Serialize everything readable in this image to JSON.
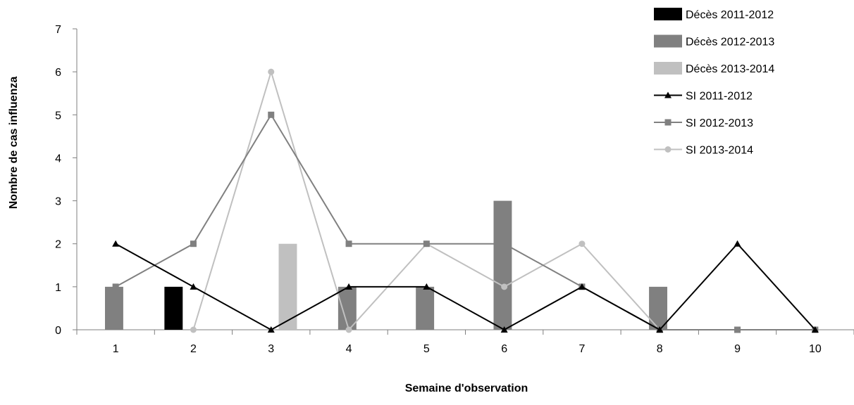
{
  "chart_data": {
    "type": "bar",
    "xlabel": "Semaine d'observation",
    "ylabel": "Nombre de cas influenza",
    "categories": [
      "1",
      "2",
      "3",
      "4",
      "5",
      "6",
      "7",
      "8",
      "9",
      "10"
    ],
    "ylim": [
      0,
      7
    ],
    "yticks": [
      "0",
      "1",
      "2",
      "3",
      "4",
      "5",
      "6",
      "7"
    ],
    "grid": false,
    "legend_position": "top-right",
    "bar_series": [
      {
        "name": "Décès 2011-2012",
        "color": "#000000",
        "values": [
          0,
          1,
          0,
          0,
          0,
          0,
          0,
          0,
          0,
          0
        ]
      },
      {
        "name": "Décès 2012-2013",
        "color": "#808080",
        "values": [
          1,
          0,
          0,
          1,
          1,
          3,
          0,
          1,
          0,
          0
        ]
      },
      {
        "name": "Décès 2013-2014",
        "color": "#c0c0c0",
        "values": [
          0,
          0,
          2,
          0,
          0,
          0,
          0,
          0,
          0,
          0
        ]
      }
    ],
    "line_series": [
      {
        "name": "SI  2011-2012",
        "color": "#000000",
        "marker": "triangle",
        "values": [
          2,
          1,
          0,
          1,
          1,
          0,
          1,
          0,
          2,
          0
        ]
      },
      {
        "name": "SI  2012-2013",
        "color": "#808080",
        "marker": "square",
        "values": [
          1,
          2,
          5,
          2,
          2,
          2,
          1,
          0,
          0,
          0
        ]
      },
      {
        "name": "SI  2013-2014",
        "color": "#c0c0c0",
        "marker": "circle",
        "values": [
          null,
          0,
          6,
          0,
          2,
          1,
          2,
          0,
          0,
          0
        ]
      }
    ]
  }
}
